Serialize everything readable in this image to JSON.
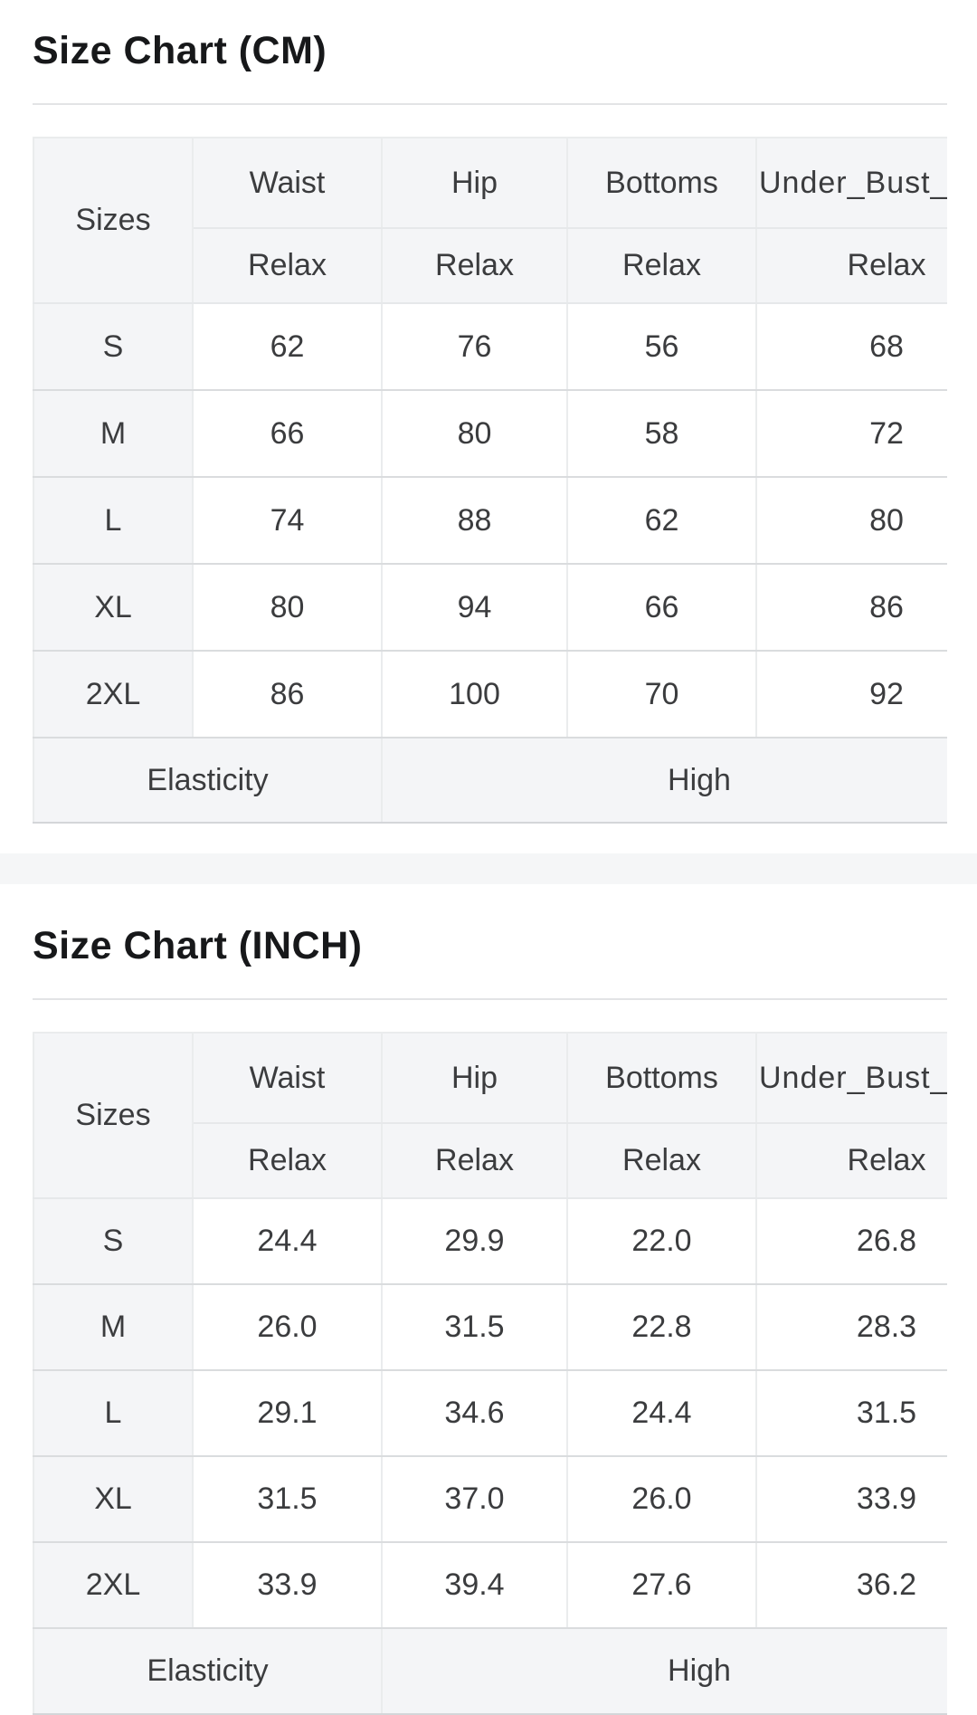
{
  "colors": {
    "title_text": "#17181a",
    "table_text": "#3b3c3e",
    "header_cell_bg": "#f4f5f7",
    "separator_band_bg": "#f5f6f7",
    "divider_line": "#e3e4e6",
    "vertical_border": "#eaeced",
    "horizontal_border": "#dadcde",
    "page_bg": "#ffffff"
  },
  "sections": [
    {
      "title": "Size Chart (CM)",
      "table": {
        "corner_label": "Sizes",
        "columns": [
          "Waist",
          "Hip",
          "Bottoms",
          "Under_Bust_"
        ],
        "fit_row": [
          "Relax",
          "Relax",
          "Relax",
          "Relax"
        ],
        "rows": [
          {
            "size": "S",
            "values": [
              "62",
              "76",
              "56",
              "68"
            ]
          },
          {
            "size": "M",
            "values": [
              "66",
              "80",
              "58",
              "72"
            ]
          },
          {
            "size": "L",
            "values": [
              "74",
              "88",
              "62",
              "80"
            ]
          },
          {
            "size": "XL",
            "values": [
              "80",
              "94",
              "66",
              "86"
            ]
          },
          {
            "size": "2XL",
            "values": [
              "86",
              "100",
              "70",
              "92"
            ]
          }
        ],
        "footer": {
          "label": "Elasticity",
          "value": "High"
        }
      }
    },
    {
      "title": "Size Chart (INCH)",
      "table": {
        "corner_label": "Sizes",
        "columns": [
          "Waist",
          "Hip",
          "Bottoms",
          "Under_Bust_"
        ],
        "fit_row": [
          "Relax",
          "Relax",
          "Relax",
          "Relax"
        ],
        "rows": [
          {
            "size": "S",
            "values": [
              "24.4",
              "29.9",
              "22.0",
              "26.8"
            ]
          },
          {
            "size": "M",
            "values": [
              "26.0",
              "31.5",
              "22.8",
              "28.3"
            ]
          },
          {
            "size": "L",
            "values": [
              "29.1",
              "34.6",
              "24.4",
              "31.5"
            ]
          },
          {
            "size": "XL",
            "values": [
              "31.5",
              "37.0",
              "26.0",
              "33.9"
            ]
          },
          {
            "size": "2XL",
            "values": [
              "33.9",
              "39.4",
              "27.6",
              "36.2"
            ]
          }
        ],
        "footer": {
          "label": "Elasticity",
          "value": "High"
        }
      }
    }
  ]
}
